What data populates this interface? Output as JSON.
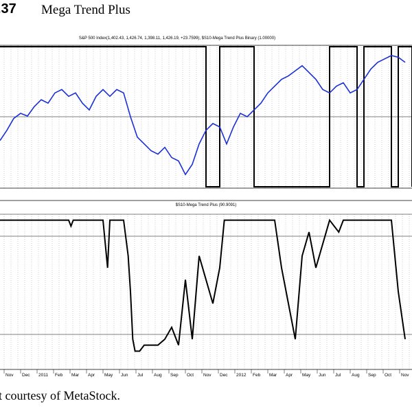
{
  "figure": {
    "number": ".37",
    "title": "Mega Trend Plus",
    "caption": "t courtesy of MetaStock."
  },
  "chart_data": [
    {
      "type": "line",
      "header": "S&P 500 Index(1,402.43, 1,426.74, 1,398.11, 1,426.19, +23.7599), $S10-Mega Trend Plus Binary (1.00000)",
      "series": [
        {
          "name": "S&P 500 Index",
          "color": "#1a2fd6",
          "points": [
            [
              0,
              1190
            ],
            [
              6,
              1220
            ],
            [
              12,
              1255
            ],
            [
              18,
              1270
            ],
            [
              24,
              1262
            ],
            [
              30,
              1290
            ],
            [
              36,
              1310
            ],
            [
              42,
              1300
            ],
            [
              48,
              1330
            ],
            [
              54,
              1340
            ],
            [
              60,
              1320
            ],
            [
              66,
              1330
            ],
            [
              72,
              1300
            ],
            [
              78,
              1280
            ],
            [
              84,
              1320
            ],
            [
              90,
              1340
            ],
            [
              96,
              1320
            ],
            [
              102,
              1340
            ],
            [
              108,
              1330
            ],
            [
              114,
              1260
            ],
            [
              120,
              1200
            ],
            [
              126,
              1180
            ],
            [
              132,
              1160
            ],
            [
              138,
              1150
            ],
            [
              144,
              1170
            ],
            [
              150,
              1140
            ],
            [
              156,
              1130
            ],
            [
              162,
              1090
            ],
            [
              168,
              1120
            ],
            [
              174,
              1180
            ],
            [
              180,
              1220
            ],
            [
              186,
              1240
            ],
            [
              192,
              1230
            ],
            [
              198,
              1180
            ],
            [
              204,
              1230
            ],
            [
              210,
              1270
            ],
            [
              216,
              1260
            ],
            [
              222,
              1280
            ],
            [
              228,
              1300
            ],
            [
              234,
              1330
            ],
            [
              240,
              1350
            ],
            [
              246,
              1370
            ],
            [
              252,
              1380
            ],
            [
              258,
              1395
            ],
            [
              264,
              1410
            ],
            [
              270,
              1390
            ],
            [
              276,
              1370
            ],
            [
              282,
              1340
            ],
            [
              288,
              1330
            ],
            [
              294,
              1350
            ],
            [
              300,
              1360
            ],
            [
              306,
              1330
            ],
            [
              312,
              1340
            ],
            [
              318,
              1370
            ],
            [
              324,
              1400
            ],
            [
              330,
              1420
            ],
            [
              336,
              1430
            ],
            [
              342,
              1440
            ],
            [
              348,
              1435
            ],
            [
              354,
              1420
            ]
          ]
        },
        {
          "name": "Mega Trend Plus Binary",
          "color": "#000000",
          "steps": [
            [
              0,
              1
            ],
            [
              180,
              0
            ],
            [
              192,
              1
            ],
            [
              222,
              0
            ],
            [
              288,
              1
            ],
            [
              312,
              0
            ],
            [
              318,
              1
            ],
            [
              342,
              0
            ],
            [
              348,
              1
            ],
            [
              360,
              0
            ]
          ]
        }
      ],
      "y_range_index": [
        1050,
        1470
      ]
    },
    {
      "type": "line",
      "header": "$S10-Mega Trend Plus (90.9091)",
      "series": [
        {
          "name": "Mega Trend Plus",
          "color": "#000000",
          "points": [
            [
              0,
              100
            ],
            [
              60,
              100
            ],
            [
              62,
              95
            ],
            [
              64,
              100
            ],
            [
              90,
              100
            ],
            [
              92,
              80
            ],
            [
              94,
              60
            ],
            [
              96,
              100
            ],
            [
              108,
              100
            ],
            [
              112,
              70
            ],
            [
              114,
              40
            ],
            [
              116,
              0
            ],
            [
              118,
              -10
            ],
            [
              122,
              -10
            ],
            [
              126,
              -5
            ],
            [
              132,
              -5
            ],
            [
              138,
              -5
            ],
            [
              144,
              0
            ],
            [
              150,
              10
            ],
            [
              156,
              -5
            ],
            [
              162,
              50
            ],
            [
              168,
              0
            ],
            [
              174,
              70
            ],
            [
              180,
              50
            ],
            [
              186,
              30
            ],
            [
              192,
              60
            ],
            [
              196,
              100
            ],
            [
              200,
              100
            ],
            [
              240,
              100
            ],
            [
              246,
              60
            ],
            [
              252,
              30
            ],
            [
              258,
              0
            ],
            [
              264,
              70
            ],
            [
              270,
              90
            ],
            [
              276,
              60
            ],
            [
              282,
              80
            ],
            [
              288,
              100
            ],
            [
              296,
              90
            ],
            [
              300,
              100
            ],
            [
              336,
              100
            ],
            [
              342,
              100
            ],
            [
              348,
              40
            ],
            [
              354,
              0
            ]
          ]
        }
      ],
      "y_range": [
        -15,
        105
      ]
    }
  ],
  "x_labels": [
    "Nov",
    "Dec",
    "2011",
    "Feb",
    "Mar",
    "Apr",
    "May",
    "Jun",
    "Jul",
    "Aug",
    "Sep",
    "Oct",
    "Nov",
    "Dec",
    "2012",
    "Feb",
    "Mar",
    "Apr",
    "May",
    "Jun",
    "Jul",
    "Aug",
    "Sep",
    "Oct",
    "Nov"
  ]
}
